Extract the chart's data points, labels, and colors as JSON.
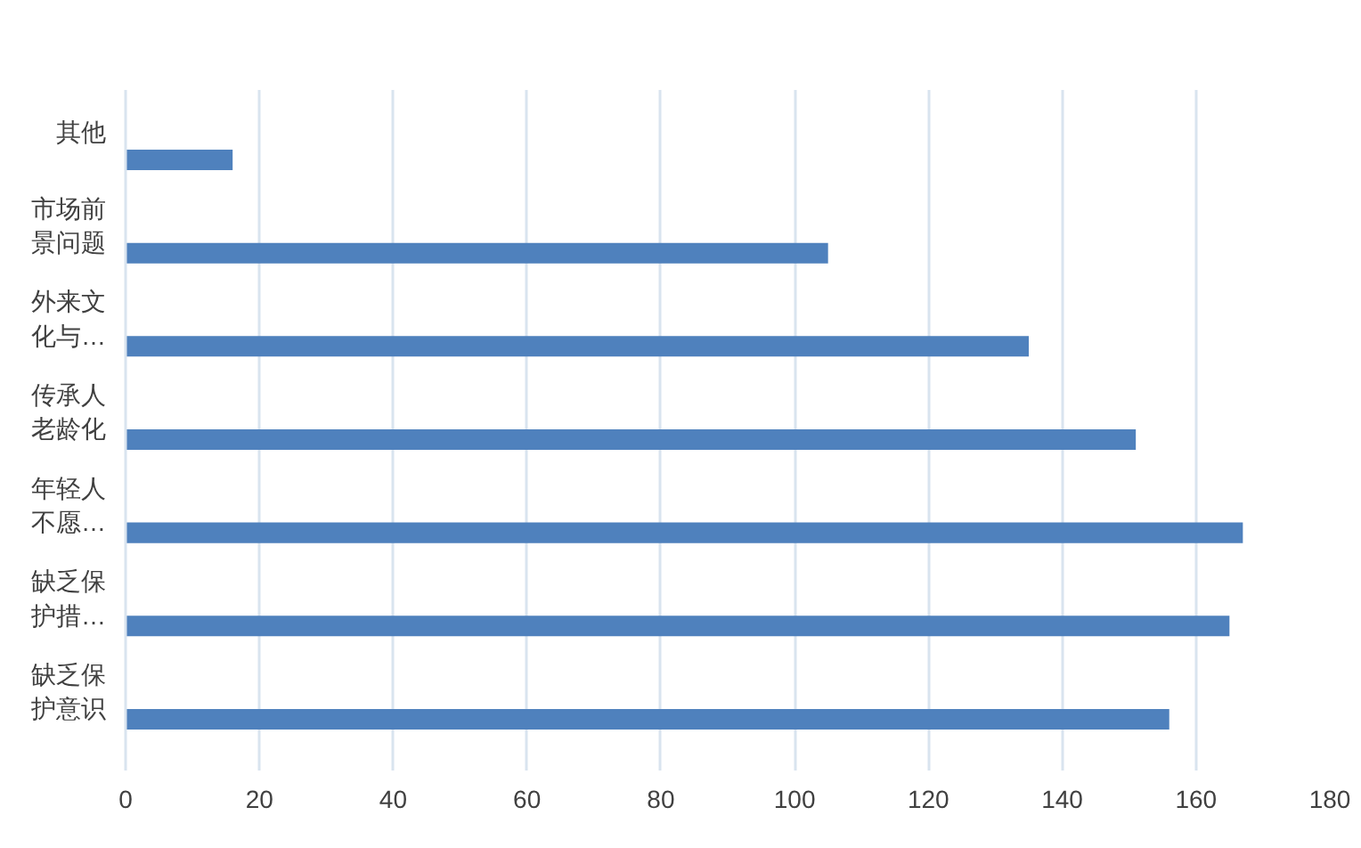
{
  "chart_data": {
    "type": "bar",
    "orientation": "horizontal",
    "categories": [
      "其他",
      "市场前景问题",
      "外来文化与…",
      "传承人老龄化",
      "年轻人不愿…",
      "缺乏保护措…",
      "缺乏保护意识"
    ],
    "values": [
      16,
      105,
      135,
      151,
      167,
      165,
      156
    ],
    "color": "#4f81bd",
    "xlim": [
      0,
      180
    ],
    "xticks": [
      0,
      20,
      40,
      60,
      80,
      100,
      120,
      140,
      160,
      180
    ],
    "grid": "x"
  }
}
